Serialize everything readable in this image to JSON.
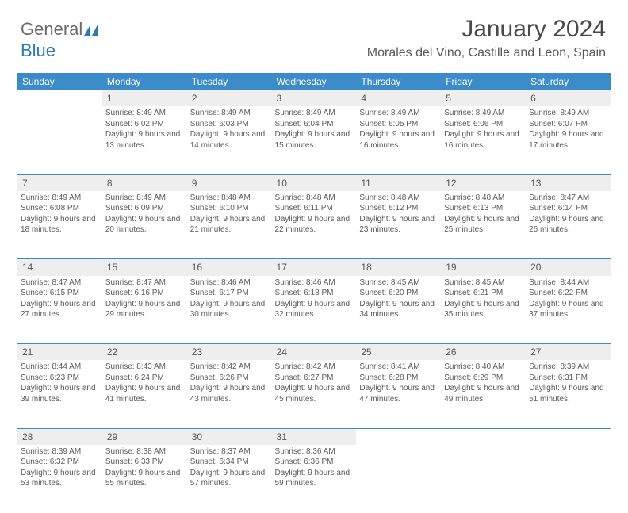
{
  "logo": {
    "part1": "General",
    "part2": "Blue"
  },
  "header": {
    "month_title": "January 2024",
    "location": "Morales del Vino, Castille and Leon, Spain"
  },
  "colors": {
    "header_bg": "#3b8bc9",
    "daynum_bg": "#eeeeee",
    "text": "#5a5a5a",
    "border": "#3b8bc9"
  },
  "layout": {
    "first_weekday_index": 1,
    "days_in_month": 31
  },
  "weekdays": [
    "Sunday",
    "Monday",
    "Tuesday",
    "Wednesday",
    "Thursday",
    "Friday",
    "Saturday"
  ],
  "days": {
    "1": {
      "sunrise": "8:49 AM",
      "sunset": "6:02 PM",
      "daylight": "9 hours and 13 minutes."
    },
    "2": {
      "sunrise": "8:49 AM",
      "sunset": "6:03 PM",
      "daylight": "9 hours and 14 minutes."
    },
    "3": {
      "sunrise": "8:49 AM",
      "sunset": "6:04 PM",
      "daylight": "9 hours and 15 minutes."
    },
    "4": {
      "sunrise": "8:49 AM",
      "sunset": "6:05 PM",
      "daylight": "9 hours and 16 minutes."
    },
    "5": {
      "sunrise": "8:49 AM",
      "sunset": "6:06 PM",
      "daylight": "9 hours and 16 minutes."
    },
    "6": {
      "sunrise": "8:49 AM",
      "sunset": "6:07 PM",
      "daylight": "9 hours and 17 minutes."
    },
    "7": {
      "sunrise": "8:49 AM",
      "sunset": "6:08 PM",
      "daylight": "9 hours and 18 minutes."
    },
    "8": {
      "sunrise": "8:49 AM",
      "sunset": "6:09 PM",
      "daylight": "9 hours and 20 minutes."
    },
    "9": {
      "sunrise": "8:48 AM",
      "sunset": "6:10 PM",
      "daylight": "9 hours and 21 minutes."
    },
    "10": {
      "sunrise": "8:48 AM",
      "sunset": "6:11 PM",
      "daylight": "9 hours and 22 minutes."
    },
    "11": {
      "sunrise": "8:48 AM",
      "sunset": "6:12 PM",
      "daylight": "9 hours and 23 minutes."
    },
    "12": {
      "sunrise": "8:48 AM",
      "sunset": "6:13 PM",
      "daylight": "9 hours and 25 minutes."
    },
    "13": {
      "sunrise": "8:47 AM",
      "sunset": "6:14 PM",
      "daylight": "9 hours and 26 minutes."
    },
    "14": {
      "sunrise": "8:47 AM",
      "sunset": "6:15 PM",
      "daylight": "9 hours and 27 minutes."
    },
    "15": {
      "sunrise": "8:47 AM",
      "sunset": "6:16 PM",
      "daylight": "9 hours and 29 minutes."
    },
    "16": {
      "sunrise": "8:46 AM",
      "sunset": "6:17 PM",
      "daylight": "9 hours and 30 minutes."
    },
    "17": {
      "sunrise": "8:46 AM",
      "sunset": "6:18 PM",
      "daylight": "9 hours and 32 minutes."
    },
    "18": {
      "sunrise": "8:45 AM",
      "sunset": "6:20 PM",
      "daylight": "9 hours and 34 minutes."
    },
    "19": {
      "sunrise": "8:45 AM",
      "sunset": "6:21 PM",
      "daylight": "9 hours and 35 minutes."
    },
    "20": {
      "sunrise": "8:44 AM",
      "sunset": "6:22 PM",
      "daylight": "9 hours and 37 minutes."
    },
    "21": {
      "sunrise": "8:44 AM",
      "sunset": "6:23 PM",
      "daylight": "9 hours and 39 minutes."
    },
    "22": {
      "sunrise": "8:43 AM",
      "sunset": "6:24 PM",
      "daylight": "9 hours and 41 minutes."
    },
    "23": {
      "sunrise": "8:42 AM",
      "sunset": "6:26 PM",
      "daylight": "9 hours and 43 minutes."
    },
    "24": {
      "sunrise": "8:42 AM",
      "sunset": "6:27 PM",
      "daylight": "9 hours and 45 minutes."
    },
    "25": {
      "sunrise": "8:41 AM",
      "sunset": "6:28 PM",
      "daylight": "9 hours and 47 minutes."
    },
    "26": {
      "sunrise": "8:40 AM",
      "sunset": "6:29 PM",
      "daylight": "9 hours and 49 minutes."
    },
    "27": {
      "sunrise": "8:39 AM",
      "sunset": "6:31 PM",
      "daylight": "9 hours and 51 minutes."
    },
    "28": {
      "sunrise": "8:39 AM",
      "sunset": "6:32 PM",
      "daylight": "9 hours and 53 minutes."
    },
    "29": {
      "sunrise": "8:38 AM",
      "sunset": "6:33 PM",
      "daylight": "9 hours and 55 minutes."
    },
    "30": {
      "sunrise": "8:37 AM",
      "sunset": "6:34 PM",
      "daylight": "9 hours and 57 minutes."
    },
    "31": {
      "sunrise": "8:36 AM",
      "sunset": "6:36 PM",
      "daylight": "9 hours and 59 minutes."
    }
  },
  "labels": {
    "sunrise": "Sunrise:",
    "sunset": "Sunset:",
    "daylight": "Daylight:"
  }
}
